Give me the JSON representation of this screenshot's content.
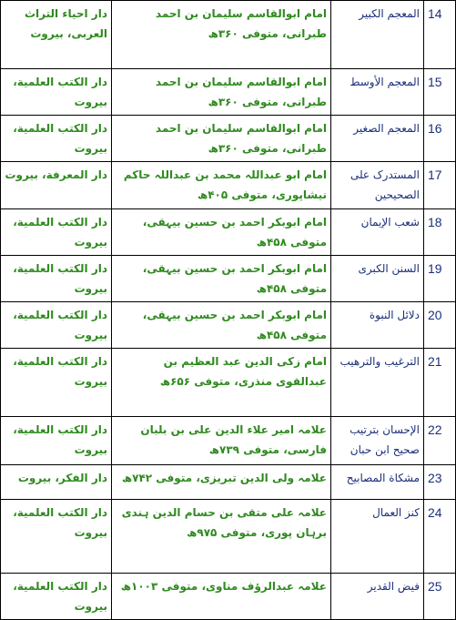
{
  "table": {
    "rows": [
      [
        "14",
        "المعجم الکبیر",
        "امام ابوالقاسم سلیمان بن احمد طبرانی، متوفی ۳۶۰ھ",
        "دار احیاء التراث العربی، بیروت"
      ],
      [
        "15",
        "المعجم الأوسط",
        "امام ابوالقاسم سلیمان بن احمد طبرانی، متوفی ۳۶۰ھ",
        "دار الکتب العلمیة، بیروت"
      ],
      [
        "16",
        "المعجم الصغیر",
        "امام ابوالقاسم سلیمان بن احمد طبرانی، متوفی ۳۶۰ھ",
        "دار الکتب العلمیة، بیروت"
      ],
      [
        "17",
        "المستدرک علی الصحیحین",
        "امام ابو عبداللہ محمد بن عبداللہ حاکم نیشاپوری، متوفی ۴۰۵ھ",
        "دار المعرفة، بیروت"
      ],
      [
        "18",
        "شعب الإیمان",
        "امام ابوبکر احمد بن حسین بیہقی، متوفی ۴۵۸ھ",
        "دار الکتب العلمیة، بیروت"
      ],
      [
        "19",
        "السنن الکبری",
        "امام ابوبکر احمد بن حسین بیہقی، متوفی ۴۵۸ھ",
        "دار الکتب العلمیة، بیروت"
      ],
      [
        "20",
        "دلائل النبوة",
        "امام ابوبکر احمد بن حسین بیہقی، متوفی ۴۵۸ھ",
        "دار الکتب العلمیة، بیروت"
      ],
      [
        "21",
        "الترغیب والترهیب",
        "امام زکی الدین عبد العظیم بن عبدالقوی منذری، متوفی ۶۵۶ھ",
        "دار الکتب العلمیة، بیروت"
      ],
      [
        "22",
        "الإحسان بترتیب صحیح ابن حبان",
        "علامہ امیر علاء الدین علی بن بلبان فارسی، متوفی ۷۳۹ھ",
        "دار الکتب العلمیة، بیروت"
      ],
      [
        "23",
        "مشکاة المصابیح",
        "علامہ ولی الدین تبریزی، متوفی ۷۴۲ھ",
        "دار الفکر، بیروت"
      ],
      [
        "24",
        "کنز العمال",
        "علامہ علی متقی بن حسام الدین ہندی برہان پوری، متوفی ۹۷۵ھ",
        "دار الکتب العلمیة، بیروت"
      ],
      [
        "25",
        "فیض القدیر",
        "علامہ عبدالرؤف مناوی، متوفی ۱۰۰۳ھ",
        "دار الکتب العلمیة، بیروت"
      ]
    ]
  }
}
